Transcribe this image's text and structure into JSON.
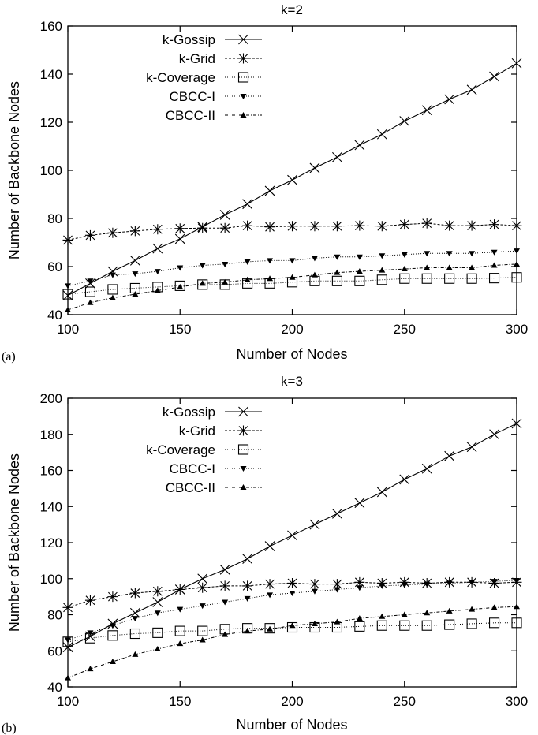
{
  "chart_data": [
    {
      "type": "line",
      "panel_label": "(a)",
      "title": "k=2",
      "xlabel": "Number of Nodes",
      "ylabel": "Number of Backbone Nodes",
      "xlim": [
        100,
        300
      ],
      "ylim": [
        40,
        160
      ],
      "xticks": [
        100,
        150,
        200,
        250,
        300
      ],
      "yticks": [
        40,
        60,
        80,
        100,
        120,
        140,
        160
      ],
      "legend_position": "top-left",
      "x": [
        100,
        110,
        120,
        130,
        140,
        150,
        160,
        170,
        180,
        190,
        200,
        210,
        220,
        230,
        240,
        250,
        260,
        270,
        280,
        290,
        300
      ],
      "series": [
        {
          "name": "k-Gossip",
          "marker": "x",
          "dash": "solid",
          "values": [
            48,
            53,
            58,
            62.5,
            67.5,
            71.5,
            76.5,
            81.5,
            86,
            91.5,
            96,
            101,
            105.5,
            110.5,
            115,
            120.5,
            125,
            129.5,
            133.5,
            139,
            144.5
          ]
        },
        {
          "name": "k-Grid",
          "marker": "star",
          "dash": "dashed",
          "values": [
            71,
            73,
            74,
            74.8,
            75.5,
            75.8,
            76,
            76,
            77,
            76.5,
            76.8,
            76.8,
            76.8,
            77,
            76.8,
            77.5,
            78,
            77,
            77,
            77.5,
            77
          ]
        },
        {
          "name": "k-Coverage",
          "marker": "square",
          "dash": "dotted",
          "values": [
            48.5,
            49.5,
            50.5,
            51,
            51.5,
            52,
            52.5,
            52.5,
            53,
            53,
            53.5,
            54,
            54,
            54,
            54.5,
            55,
            55,
            55,
            55,
            55.2,
            55.5
          ]
        },
        {
          "name": "CBCC-I",
          "marker": "triangle-down",
          "dash": "dotted",
          "values": [
            52,
            54,
            56.5,
            57,
            58,
            59.5,
            60.5,
            61,
            62,
            62.5,
            62.5,
            63.5,
            64,
            64,
            64.5,
            65,
            65.5,
            65.5,
            65.5,
            66,
            66.5
          ]
        },
        {
          "name": "CBCC-II",
          "marker": "triangle-up",
          "dash": "dashdot",
          "values": [
            42,
            45,
            47,
            48.5,
            50,
            51.5,
            53,
            53.5,
            54.5,
            55,
            55.5,
            56.5,
            57.5,
            58,
            58.5,
            59,
            59.5,
            59.5,
            59.5,
            60.5,
            61
          ]
        }
      ]
    },
    {
      "type": "line",
      "panel_label": "(b)",
      "title": "k=3",
      "xlabel": "Number of Nodes",
      "ylabel": "Number of Backbone Nodes",
      "xlim": [
        100,
        300
      ],
      "ylim": [
        40,
        200
      ],
      "xticks": [
        100,
        150,
        200,
        250,
        300
      ],
      "yticks": [
        40,
        60,
        80,
        100,
        120,
        140,
        160,
        180,
        200
      ],
      "legend_position": "top-left",
      "x": [
        100,
        110,
        120,
        130,
        140,
        150,
        160,
        170,
        180,
        190,
        200,
        210,
        220,
        230,
        240,
        250,
        260,
        270,
        280,
        290,
        300
      ],
      "series": [
        {
          "name": "k-Gossip",
          "marker": "x",
          "dash": "solid",
          "values": [
            62,
            68,
            75,
            81,
            87,
            94,
            100,
            105,
            111,
            118,
            124,
            130,
            136,
            142,
            148,
            155,
            161,
            168,
            173,
            180,
            186
          ]
        },
        {
          "name": "k-Grid",
          "marker": "star",
          "dash": "dashed",
          "values": [
            84,
            88,
            90,
            92,
            93,
            94,
            95,
            96,
            96,
            97,
            97.5,
            97,
            97,
            98,
            97.5,
            98,
            97.5,
            98,
            98,
            97.5,
            98
          ]
        },
        {
          "name": "k-Coverage",
          "marker": "square",
          "dash": "dotted",
          "values": [
            65,
            67,
            68.5,
            69.5,
            70,
            71,
            71,
            72,
            72.5,
            72.5,
            73,
            73,
            73,
            73.5,
            74,
            74,
            74,
            74.5,
            75,
            75.5,
            75.5
          ]
        },
        {
          "name": "CBCC-I",
          "marker": "triangle-down",
          "dash": "dotted",
          "values": [
            66,
            70,
            74,
            78,
            81,
            83,
            85,
            87,
            89,
            91,
            92,
            93,
            94,
            95,
            96,
            96.5,
            97,
            97.5,
            98,
            98.5,
            99
          ]
        },
        {
          "name": "CBCC-II",
          "marker": "triangle-up",
          "dash": "dashdot",
          "values": [
            45,
            50,
            54,
            58,
            61,
            64,
            66,
            69,
            71,
            72,
            74,
            75,
            76,
            78,
            79,
            80,
            81,
            82,
            83,
            84,
            84.5
          ]
        }
      ]
    }
  ]
}
